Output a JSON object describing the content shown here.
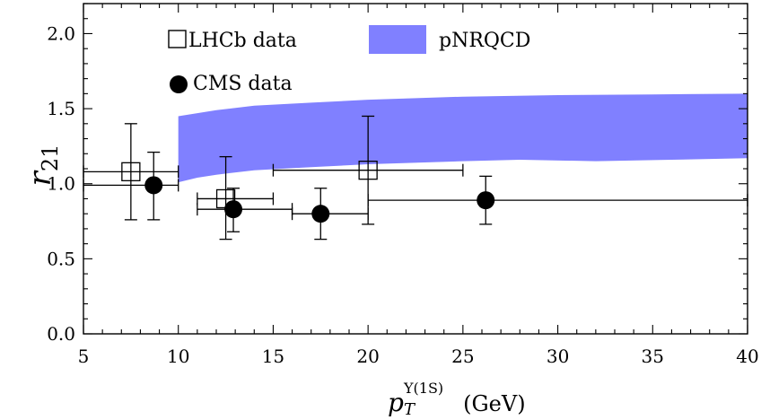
{
  "chart_data": {
    "type": "scatter",
    "xlabel": {
      "symbol": "p",
      "subscript": "T",
      "superscript": "Υ(1S)",
      "unit": "(GeV)"
    },
    "ylabel": {
      "symbol": "r",
      "subscript": "21"
    },
    "xlim": [
      5,
      40
    ],
    "ylim": [
      0,
      2.2
    ],
    "xticks": [
      5,
      10,
      15,
      20,
      25,
      30,
      35,
      40
    ],
    "yticks": [
      0.0,
      0.5,
      1.0,
      1.5,
      2.0
    ],
    "ytick_labels": [
      "0.0",
      "0.5",
      "1.0",
      "1.5",
      "2.0"
    ],
    "grid": false,
    "legend": {
      "lhcb": "LHCb data",
      "band": "pNRQCD",
      "cms": "CMS data"
    },
    "series": [
      {
        "name": "LHCb data",
        "marker": "open-square",
        "points": [
          {
            "x": 7.5,
            "y": 1.08,
            "xerr": [
              2.5,
              2.5
            ],
            "yerr": [
              0.32,
              0.32
            ]
          },
          {
            "x": 12.5,
            "y": 0.9,
            "xerr": [
              1.5,
              2.5
            ],
            "yerr": [
              0.27,
              0.28
            ]
          },
          {
            "x": 20.0,
            "y": 1.09,
            "xerr": [
              5.0,
              5.0
            ],
            "yerr": [
              0.36,
              0.36
            ]
          }
        ]
      },
      {
        "name": "CMS data",
        "marker": "filled-circle",
        "points": [
          {
            "x": 8.7,
            "y": 0.99,
            "xerr": [
              3.7,
              1.3
            ],
            "yerr": [
              0.23,
              0.22
            ]
          },
          {
            "x": 12.9,
            "y": 0.83,
            "xerr": [
              1.9,
              3.1
            ],
            "yerr": [
              0.15,
              0.14
            ]
          },
          {
            "x": 17.5,
            "y": 0.8,
            "xerr": [
              1.5,
              2.5
            ],
            "yerr": [
              0.17,
              0.17
            ]
          },
          {
            "x": 26.2,
            "y": 0.89,
            "xerr": [
              6.2,
              13.8
            ],
            "yerr": [
              0.16,
              0.16
            ]
          }
        ]
      }
    ],
    "band": {
      "name": "pNRQCD",
      "color": "#8080ff",
      "upper": [
        [
          10,
          1.45
        ],
        [
          11,
          1.47
        ],
        [
          12,
          1.49
        ],
        [
          14,
          1.52
        ],
        [
          17,
          1.54
        ],
        [
          20,
          1.56
        ],
        [
          25,
          1.58
        ],
        [
          30,
          1.59
        ],
        [
          35,
          1.595
        ],
        [
          40,
          1.6
        ]
      ],
      "lower": [
        [
          10,
          1.01
        ],
        [
          11,
          1.04
        ],
        [
          12,
          1.06
        ],
        [
          14,
          1.09
        ],
        [
          17,
          1.11
        ],
        [
          20,
          1.13
        ],
        [
          25,
          1.15
        ],
        [
          28,
          1.16
        ],
        [
          32,
          1.15
        ],
        [
          36,
          1.16
        ],
        [
          40,
          1.17
        ]
      ]
    }
  }
}
